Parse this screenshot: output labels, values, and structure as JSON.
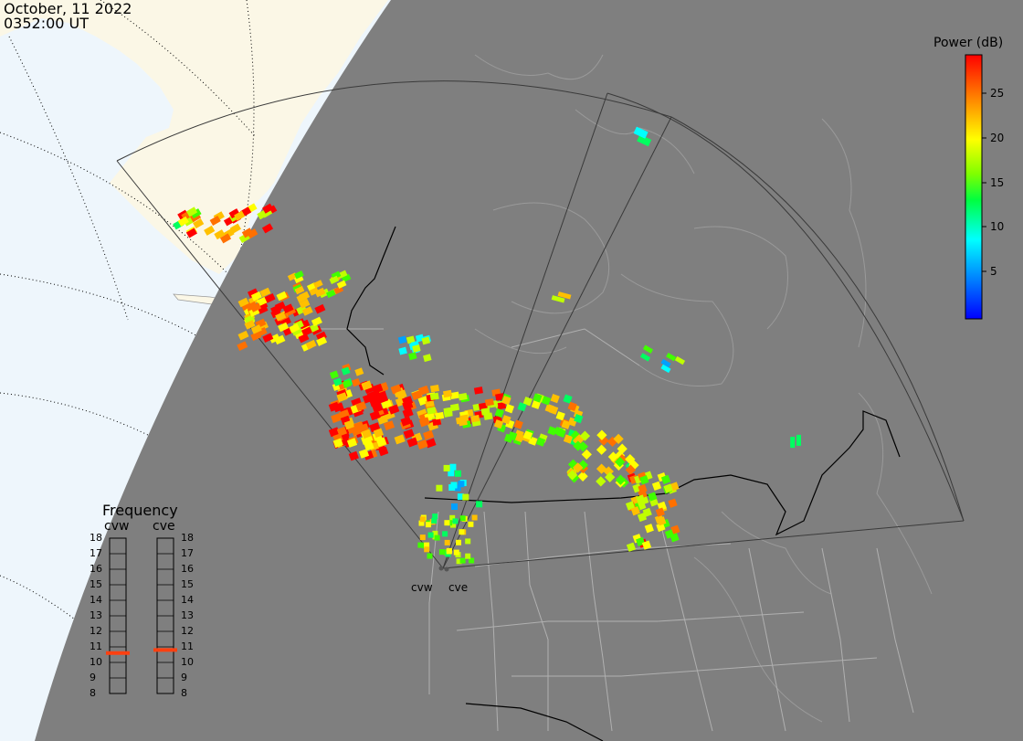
{
  "header": {
    "date": "October, 11 2022",
    "time": "0352:00 UT"
  },
  "colorbar": {
    "title": "Power (dB)",
    "ticks": [
      "25",
      "20",
      "15",
      "10",
      "5"
    ],
    "min": 0,
    "max": 29,
    "colors": [
      "#0000ff",
      "#00a0ff",
      "#00ffff",
      "#00ff60",
      "#40ff00",
      "#c0ff00",
      "#ffff00",
      "#ffc000",
      "#ff7000",
      "#ff0000"
    ]
  },
  "frequency_panel": {
    "title": "Frequency",
    "left_column": "cvw",
    "right_column": "cve",
    "levels": [
      "18",
      "17",
      "16",
      "15",
      "14",
      "13",
      "12",
      "11",
      "10",
      "9",
      "8"
    ],
    "cvw_freq_mhz": 10.6,
    "cve_freq_mhz": 10.8,
    "indicator_color": "#ff4010"
  },
  "sites": {
    "west": "cvw",
    "east": "cve"
  },
  "colors": {
    "night": "#7f7f7f",
    "day_ocean": "#eef6fc",
    "day_land": "#fbf7e6"
  }
}
